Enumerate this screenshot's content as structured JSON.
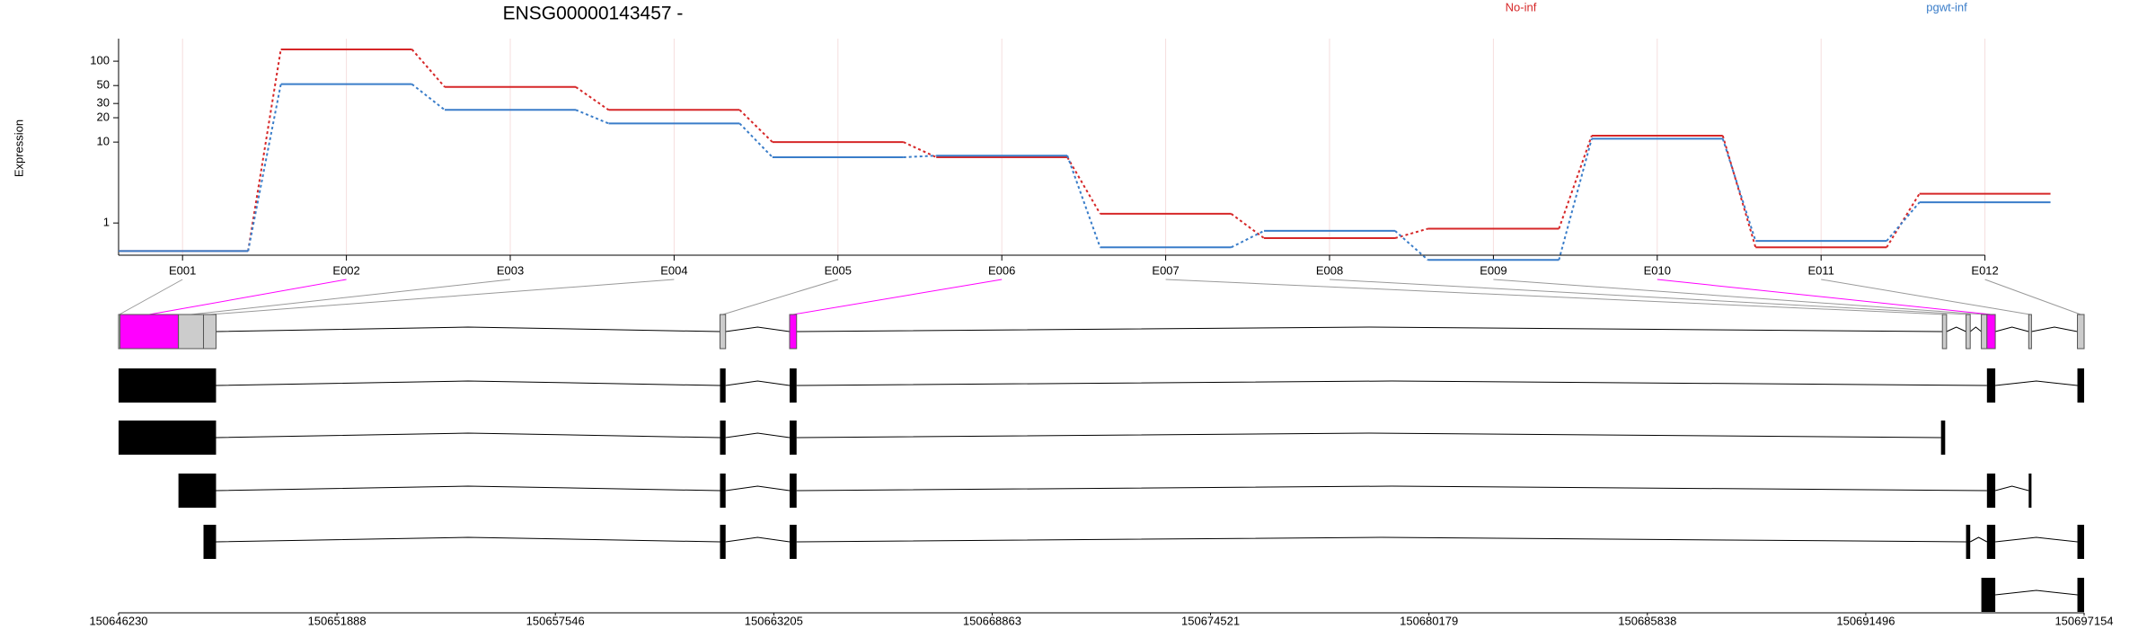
{
  "chart_data": {
    "type": "line",
    "title": "ENSG00000143457 -",
    "y_label": "Expression",
    "categories": [
      "E001",
      "E002",
      "E003",
      "E004",
      "E005",
      "E006",
      "E007",
      "E008",
      "E009",
      "E010",
      "E011",
      "E012"
    ],
    "series": [
      {
        "name": "No-inf",
        "color": "#d62728",
        "values": [
          0.45,
          140,
          48,
          25,
          10,
          6.5,
          1.3,
          0.65,
          0.85,
          12,
          0.5,
          2.3
        ]
      },
      {
        "name": "pgwt-inf",
        "color": "#3a7dc9",
        "values": [
          0.45,
          52,
          25,
          17,
          6.5,
          6.8,
          0.5,
          0.8,
          0.35,
          11,
          0.6,
          1.8
        ]
      }
    ],
    "yscale": "log",
    "ylim": [
      0.4,
      190
    ],
    "yticks": [
      1,
      10,
      20,
      30,
      50,
      100
    ],
    "grid": true,
    "gene_model": {
      "exon_color": "#cccccc",
      "significant_color": "#ff00ff",
      "transcript_color": "#000000",
      "exons": [
        {
          "range": [
            150646230,
            150646266
          ],
          "significant": false
        },
        {
          "range": [
            150646266,
            150647781
          ],
          "significant": true
        },
        {
          "range": [
            150647781,
            150648430
          ],
          "significant": false
        },
        {
          "range": [
            150648430,
            150648755
          ],
          "significant": false
        },
        {
          "range": [
            150661812,
            150661957
          ],
          "significant": false
        },
        {
          "range": [
            150663616,
            150663796
          ],
          "significant": true
        },
        {
          "range": [
            150693482,
            150693590
          ],
          "significant": false
        },
        {
          "range": [
            150694095,
            150694203
          ],
          "significant": false
        },
        {
          "range": [
            150694491,
            150694636
          ],
          "significant": false
        },
        {
          "range": [
            150694636,
            150694852
          ],
          "significant": true
        },
        {
          "range": [
            150695718,
            150695790
          ],
          "significant": false
        },
        {
          "range": [
            150696980,
            150697154
          ],
          "significant": false
        }
      ],
      "transcripts": [
        [
          [
            150646230,
            150648755
          ],
          [
            150661812,
            150661957
          ],
          [
            150663616,
            150663796
          ],
          [
            150694636,
            150694852
          ],
          [
            150696980,
            150697154
          ]
        ],
        [
          [
            150646230,
            150648755
          ],
          [
            150661812,
            150661957
          ],
          [
            150663616,
            150663796
          ],
          [
            150693446,
            150693554
          ]
        ],
        [
          [
            150647781,
            150648755
          ],
          [
            150661812,
            150661957
          ],
          [
            150663616,
            150663796
          ],
          [
            150694636,
            150694852
          ],
          [
            150695718,
            150695790
          ]
        ],
        [
          [
            150648430,
            150648755
          ],
          [
            150661812,
            150661957
          ],
          [
            150663616,
            150663796
          ],
          [
            150694095,
            150694203
          ],
          [
            150694636,
            150694852
          ],
          [
            150696980,
            150697154
          ]
        ],
        [
          [
            150694491,
            150694852
          ],
          [
            150696980,
            150697154
          ]
        ]
      ],
      "xlim": [
        150646230,
        150697154
      ],
      "xticks": [
        150646230,
        150651888,
        150657546,
        150663205,
        150668863,
        150674521,
        150680179,
        150685838,
        150691496,
        150697154
      ]
    }
  }
}
